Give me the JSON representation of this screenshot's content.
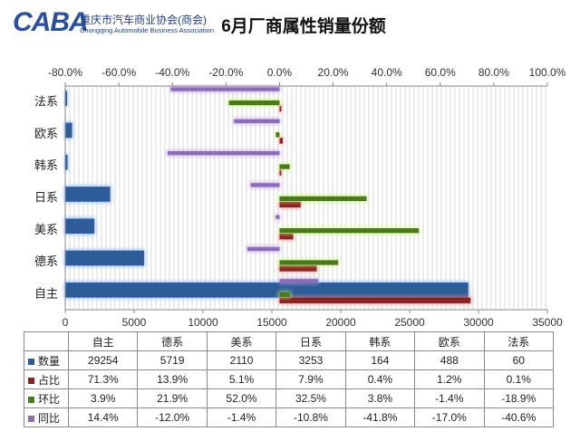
{
  "header": {
    "logo_text": "CABA",
    "org_name_cn": "重庆市汽车商业协会(商会)",
    "org_name_en": "Chongqing Automobile Business Association",
    "title": "6月厂商属性销量份额"
  },
  "chart_data": {
    "type": "bar",
    "orientation": "horizontal",
    "title": "6月厂商属性销量份额",
    "categories": [
      "法系",
      "欧系",
      "韩系",
      "日系",
      "美系",
      "德系",
      "自主"
    ],
    "primary_axis": {
      "position": "bottom",
      "ticks": [
        "0",
        "5000",
        "10000",
        "15000",
        "20000",
        "25000",
        "30000",
        "35000"
      ],
      "range": [
        0,
        35000
      ]
    },
    "secondary_axis": {
      "position": "top",
      "ticks": [
        "-80.0%",
        "-60.0%",
        "-40.0%",
        "-20.0%",
        "0.0%",
        "20.0%",
        "40.0%",
        "60.0%",
        "80.0%",
        "100.0%"
      ],
      "range": [
        -80,
        100
      ]
    },
    "grid": "vertical",
    "series": [
      {
        "name": "数量",
        "axis": "primary",
        "color": "#2e5c99",
        "values": [
          60,
          488,
          164,
          3253,
          2110,
          5719,
          29254
        ]
      },
      {
        "name": "占比",
        "axis": "secondary",
        "color": "#8b2323",
        "values": [
          0.1,
          1.2,
          0.4,
          7.9,
          5.1,
          13.9,
          71.3
        ]
      },
      {
        "name": "环比",
        "axis": "secondary",
        "color": "#4b7a1e",
        "values": [
          -18.9,
          -1.4,
          3.8,
          32.5,
          52.0,
          21.9,
          3.9
        ]
      },
      {
        "name": "同比",
        "axis": "secondary",
        "color": "#8e6bb5",
        "values": [
          -40.6,
          -17.0,
          -41.8,
          -10.8,
          -1.4,
          -12.0,
          14.4
        ]
      }
    ]
  },
  "table": {
    "columns": [
      "自主",
      "德系",
      "美系",
      "日系",
      "韩系",
      "欧系",
      "法系"
    ],
    "rows": [
      {
        "label": "数量",
        "cells": [
          "29254",
          "5719",
          "2110",
          "3253",
          "164",
          "488",
          "60"
        ]
      },
      {
        "label": "占比",
        "cells": [
          "71.3%",
          "13.9%",
          "5.1%",
          "7.9%",
          "0.4%",
          "1.2%",
          "0.1%"
        ]
      },
      {
        "label": "环比",
        "cells": [
          "3.9%",
          "21.9%",
          "52.0%",
          "32.5%",
          "3.8%",
          "-1.4%",
          "-18.9%"
        ]
      },
      {
        "label": "同比",
        "cells": [
          "14.4%",
          "-12.0%",
          "-1.4%",
          "-10.8%",
          "-41.8%",
          "-17.0%",
          "-40.6%"
        ]
      }
    ]
  }
}
